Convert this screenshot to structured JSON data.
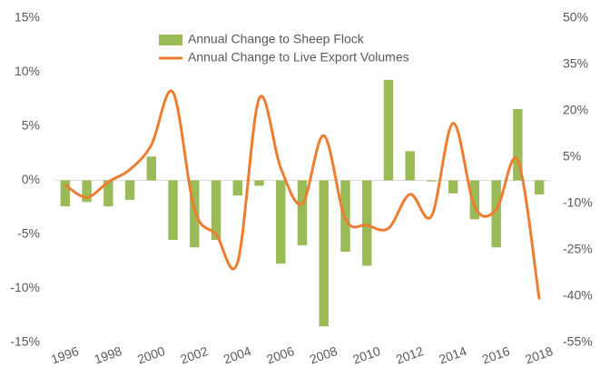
{
  "chart_data": {
    "type": "bar_line",
    "categories": [
      "1996",
      null,
      "1998",
      null,
      "2000",
      null,
      "2002",
      null,
      "2004",
      null,
      "2006",
      null,
      "2008",
      null,
      "2010",
      null,
      "2012",
      null,
      "2014",
      null,
      "2016",
      null,
      "2018"
    ],
    "series": [
      {
        "name": "Annual Change to Sheep Flock",
        "type": "bar",
        "color": "#9bbb59",
        "values": [
          -2.4,
          -2.0,
          -2.4,
          -1.8,
          2.2,
          -5.5,
          -6.2,
          -5.5,
          -1.4,
          -0.5,
          -7.7,
          -6.0,
          -13.5,
          -6.6,
          -7.9,
          9.3,
          2.7,
          -0.1,
          -1.2,
          -3.6,
          -6.2,
          6.6,
          -1.3
        ]
      },
      {
        "name": "Annual Change to Live Export Volumes",
        "type": "line",
        "axis": "y2",
        "color": "#ed7d31",
        "values": [
          -4,
          -8,
          -3,
          1,
          9,
          26,
          -12,
          -20,
          -29,
          24,
          1.5,
          -10,
          12,
          -15,
          -17,
          -18,
          -7,
          -14,
          16,
          -11,
          -12,
          4,
          -41
        ]
      }
    ],
    "ylim": [
      -15,
      15
    ],
    "yticks": [
      {
        "value": -15,
        "label": "-15%"
      },
      {
        "value": -10,
        "label": "-10%"
      },
      {
        "value": -5,
        "label": "-5%"
      },
      {
        "value": 0,
        "label": "0%"
      },
      {
        "value": 5,
        "label": "5%"
      },
      {
        "value": 10,
        "label": "10%"
      },
      {
        "value": 15,
        "label": "15%"
      }
    ],
    "y2lim": [
      -55,
      50
    ],
    "y2ticks": [
      {
        "value": -55,
        "label": "-55%"
      },
      {
        "value": -40,
        "label": "-40%"
      },
      {
        "value": -25,
        "label": "-25%"
      },
      {
        "value": -10,
        "label": "-10%"
      },
      {
        "value": 5,
        "label": "5%"
      },
      {
        "value": 20,
        "label": "20%"
      },
      {
        "value": 35,
        "label": "35%"
      },
      {
        "value": 50,
        "label": "50%"
      }
    ],
    "legend": "top"
  }
}
